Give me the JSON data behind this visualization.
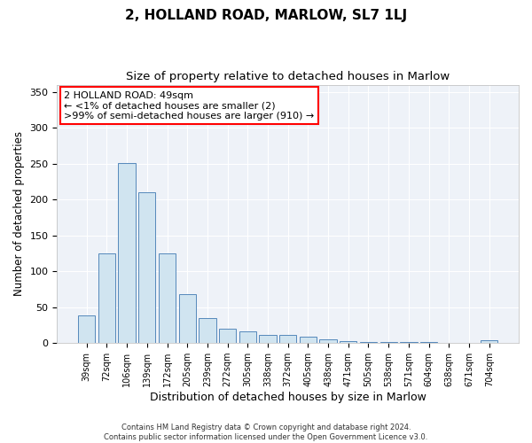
{
  "title": "2, HOLLAND ROAD, MARLOW, SL7 1LJ",
  "subtitle": "Size of property relative to detached houses in Marlow",
  "xlabel": "Distribution of detached houses by size in Marlow",
  "ylabel": "Number of detached properties",
  "categories": [
    "39sqm",
    "72sqm",
    "106sqm",
    "139sqm",
    "172sqm",
    "205sqm",
    "239sqm",
    "272sqm",
    "305sqm",
    "338sqm",
    "372sqm",
    "405sqm",
    "438sqm",
    "471sqm",
    "505sqm",
    "538sqm",
    "571sqm",
    "604sqm",
    "638sqm",
    "671sqm",
    "704sqm"
  ],
  "values": [
    38,
    125,
    251,
    210,
    125,
    68,
    35,
    20,
    16,
    12,
    11,
    9,
    5,
    3,
    1,
    1,
    1,
    1,
    0,
    0,
    4
  ],
  "bar_color": "#d0e4f0",
  "bar_edge_color": "#5588bb",
  "annotation_box_text": "2 HOLLAND ROAD: 49sqm\n← <1% of detached houses are smaller (2)\n>99% of semi-detached houses are larger (910) →",
  "ylim": [
    0,
    360
  ],
  "yticks": [
    0,
    50,
    100,
    150,
    200,
    250,
    300,
    350
  ],
  "bg_color": "#eef2f8",
  "footer_text": "Contains HM Land Registry data © Crown copyright and database right 2024.\nContains public sector information licensed under the Open Government Licence v3.0.",
  "title_fontsize": 11,
  "subtitle_fontsize": 9.5,
  "xlabel_fontsize": 9,
  "ylabel_fontsize": 8.5,
  "tick_fontsize": 8,
  "annotation_fontsize": 8
}
